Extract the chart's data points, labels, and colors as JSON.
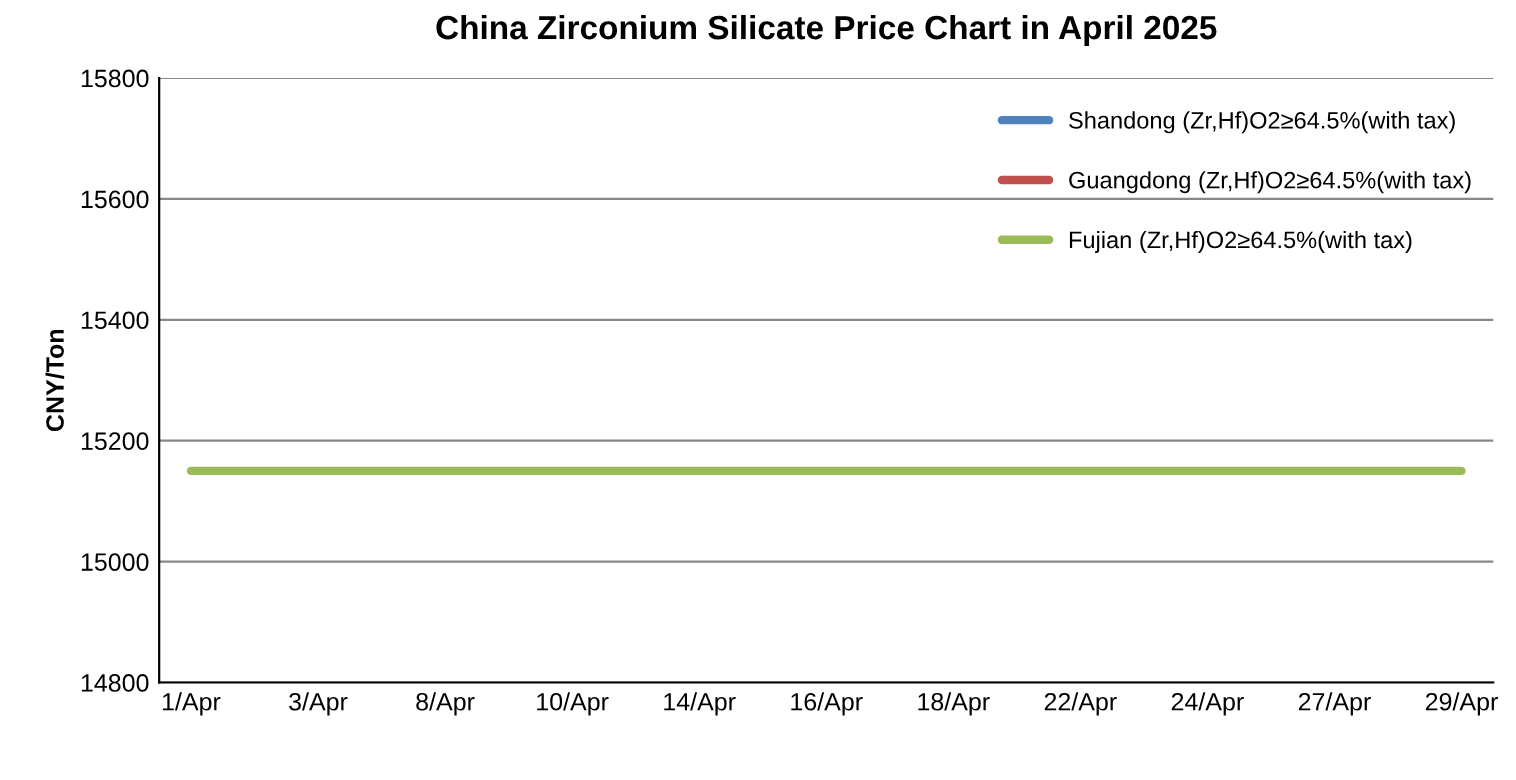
{
  "chart_data": {
    "type": "line",
    "title": "China Zirconium Silicate Price Chart in April 2025",
    "ylabel": "CNY/Ton",
    "categories": [
      "1/Apr",
      null,
      "3/Apr",
      null,
      "8/Apr",
      null,
      "10/Apr",
      null,
      "14/Apr",
      null,
      "16/Apr",
      null,
      "18/Apr",
      null,
      "22/Apr",
      null,
      "24/Apr",
      null,
      "27/Apr",
      null,
      "29/Apr"
    ],
    "series": [
      {
        "name": "Shandong (Zr,Hf)O2≥64.5%(with tax)",
        "color": "#4f81bd",
        "values": [
          null,
          null,
          null,
          null,
          null,
          null,
          null,
          null,
          null,
          null,
          null,
          null,
          null,
          null,
          null,
          null,
          null,
          null,
          null,
          null,
          null
        ]
      },
      {
        "name": "Guangdong (Zr,Hf)O2≥64.5%(with tax)",
        "color": "#c0504d",
        "values": [
          null,
          null,
          null,
          null,
          null,
          null,
          null,
          null,
          null,
          null,
          null,
          null,
          null,
          null,
          null,
          null,
          null,
          null,
          null,
          null,
          null
        ]
      },
      {
        "name": "Fujian (Zr,Hf)O2≥64.5%(with tax)",
        "color": "#9bbb59",
        "values": [
          15150,
          15150,
          15150,
          15150,
          15150,
          15150,
          15150,
          15150,
          15150,
          15150,
          15150,
          15150,
          15150,
          15150,
          15150,
          15150,
          15150,
          15150,
          15150,
          15150,
          15150
        ]
      }
    ],
    "ylim": [
      14800,
      15800
    ],
    "yticks": [
      14800,
      15000,
      15200,
      15400,
      15600,
      15800
    ],
    "grid": "y",
    "legend": "top right",
    "marker": "none",
    "line_style": "solid"
  }
}
